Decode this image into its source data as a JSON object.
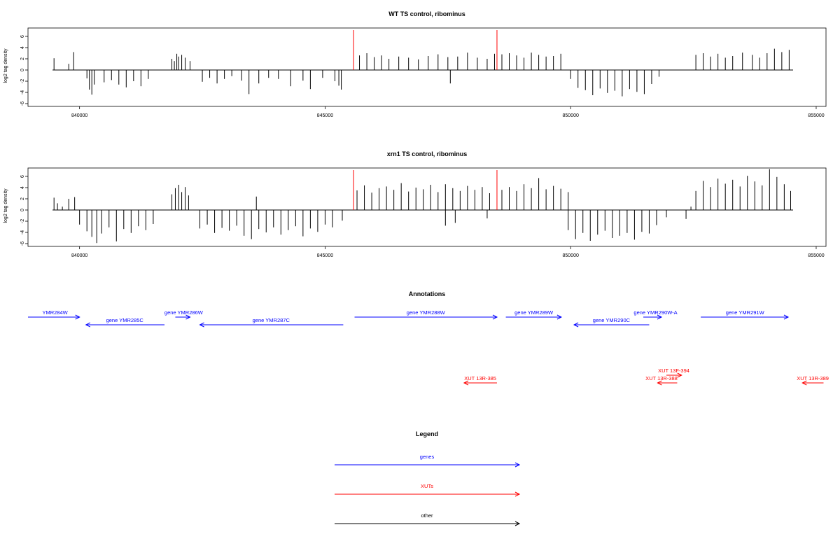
{
  "colors": {
    "gene": "#0000ff",
    "xut": "#ff0000",
    "other": "#000000",
    "marker": "#ff0000",
    "signal": "#000000"
  },
  "chart_data": [
    {
      "type": "bar",
      "title": "WT TS control, ribominus",
      "ylabel": "log2 tag density",
      "xlim": [
        838950,
        855200
      ],
      "ylim": [
        -6,
        7.5
      ],
      "xticks": [
        840000,
        845000,
        850000,
        855000
      ],
      "xtick_labels": [
        "840000",
        "845000",
        "850000",
        "855000"
      ],
      "yticks": [
        -6,
        -4,
        -2,
        0,
        2,
        4,
        6
      ],
      "ytick_labels": [
        "-6",
        "-4",
        "-2",
        "0",
        "2",
        "4",
        "6"
      ],
      "baseline_span": [
        839450,
        854530
      ],
      "markers": [
        845580,
        848500
      ],
      "series": [
        {
          "x": [
            839480,
            839880
          ],
          "values": [
            2.1,
            3.2
          ]
        },
        {
          "x": [
            839780
          ],
          "values": [
            1.1
          ]
        },
        {
          "x": [
            840150,
            840200,
            840250,
            840300,
            840500,
            840650
          ],
          "values": [
            -1.5,
            -3.5,
            -4.4,
            -2.6,
            -2.2,
            -1.8
          ]
        },
        {
          "x": [
            840800,
            840950,
            841100,
            841250,
            841400
          ],
          "values": [
            -2.6,
            -3.1,
            -2.0,
            -2.9,
            -1.6
          ]
        },
        {
          "x": [
            841880,
            841930,
            841980,
            842020,
            842080,
            842150,
            842250
          ],
          "values": [
            2.0,
            1.6,
            2.9,
            2.4,
            2.7,
            2.2,
            1.6
          ]
        },
        {
          "x": [
            842500,
            842650,
            842800,
            842950,
            843100,
            843300,
            843450,
            843650,
            843850
          ],
          "values": [
            -2.1,
            -1.4,
            -2.4,
            -1.6,
            -1.1,
            -1.9,
            -4.3,
            -2.4,
            -1.4
          ]
        },
        {
          "x": [
            844050,
            844300,
            844550,
            844700,
            844950
          ],
          "values": [
            -1.6,
            -2.9,
            -1.9,
            -3.4,
            -1.4
          ]
        },
        {
          "x": [
            845200,
            845280,
            845330
          ],
          "values": [
            -2.0,
            -2.8,
            -3.5
          ]
        },
        {
          "x": [
            845700,
            845850,
            846000,
            846150,
            846300,
            846500,
            846700,
            846900,
            847100,
            847300,
            847500,
            847700,
            847900,
            848100,
            848300,
            848450
          ],
          "values": [
            2.6,
            3.0,
            2.3,
            2.6,
            2.0,
            2.4,
            2.2,
            1.9,
            2.5,
            2.8,
            2.3,
            2.4,
            3.1,
            2.2,
            2.0,
            2.9
          ]
        },
        {
          "x": [
            847550
          ],
          "values": [
            -2.4
          ]
        },
        {
          "x": [
            848600,
            848750,
            848900,
            849050,
            849200,
            849350,
            849500,
            849650,
            849800
          ],
          "values": [
            2.8,
            3.0,
            2.6,
            2.2,
            3.1,
            2.7,
            2.4,
            2.5,
            2.9
          ]
        },
        {
          "x": [
            850000,
            850150,
            850300,
            850450,
            850600,
            850750,
            850900,
            851050,
            851200,
            851350,
            851500,
            851650,
            851800
          ],
          "values": [
            -1.6,
            -3.2,
            -3.6,
            -4.5,
            -3.3,
            -4.1,
            -3.7,
            -4.7,
            -3.4,
            -3.9,
            -4.3,
            -2.5,
            -1.2
          ]
        },
        {
          "x": [
            852550,
            852700,
            852850,
            853000,
            853150,
            853300,
            853500,
            853700,
            853850,
            854000,
            854150,
            854300,
            854450
          ],
          "values": [
            2.7,
            3.0,
            2.4,
            2.9,
            2.2,
            2.5,
            3.1,
            2.7,
            2.2,
            3.0,
            3.8,
            3.2,
            3.6
          ]
        }
      ]
    },
    {
      "type": "bar",
      "title": "xrn1 TS control, ribominus",
      "ylabel": "log2 tag density",
      "xlim": [
        838950,
        855200
      ],
      "ylim": [
        -6,
        7.5
      ],
      "xticks": [
        840000,
        845000,
        850000,
        855000
      ],
      "xtick_labels": [
        "840000",
        "845000",
        "850000",
        "855000"
      ],
      "yticks": [
        -6,
        -4,
        -2,
        0,
        2,
        4,
        6
      ],
      "ytick_labels": [
        "-6",
        "-4",
        "-2",
        "0",
        "2",
        "4",
        "6"
      ],
      "baseline_span": [
        839450,
        854530
      ],
      "markers": [
        845580,
        848500
      ],
      "series": [
        {
          "x": [
            839480,
            839550,
            839650,
            839780,
            839900
          ],
          "values": [
            2.2,
            1.2,
            0.6,
            2.0,
            2.3
          ]
        },
        {
          "x": [
            840000,
            840150,
            840250,
            840350,
            840450,
            840600,
            840750,
            840900,
            841050,
            841200,
            841350,
            841500
          ],
          "values": [
            -2.6,
            -3.8,
            -4.8,
            -5.9,
            -4.2,
            -3.1,
            -5.6,
            -3.4,
            -4.1,
            -2.9,
            -3.6,
            -2.5
          ]
        },
        {
          "x": [
            841880,
            841950,
            842020,
            842080,
            842150,
            842220
          ],
          "values": [
            2.8,
            3.9,
            4.5,
            3.2,
            4.1,
            2.6
          ]
        },
        {
          "x": [
            842450,
            842600,
            842750,
            842900,
            843050,
            843200,
            843350,
            843500,
            843650,
            843800,
            843950,
            844100,
            844250,
            844400,
            844550,
            844700,
            844850,
            845000,
            845150,
            845350
          ],
          "values": [
            -3.3,
            -2.6,
            -4.1,
            -3.2,
            -3.7,
            -2.8,
            -4.6,
            -5.2,
            -3.4,
            -4.0,
            -3.1,
            -4.4,
            -3.6,
            -2.9,
            -4.7,
            -3.3,
            -3.9,
            -2.6,
            -3.1,
            -1.9
          ]
        },
        {
          "x": [
            843600
          ],
          "values": [
            2.4
          ]
        },
        {
          "x": [
            845650,
            845800,
            845950,
            846100,
            846250,
            846400,
            846550,
            846700,
            846850,
            847000,
            847150,
            847300,
            847450,
            847600,
            847750,
            847900,
            848050,
            848200,
            848350
          ],
          "values": [
            3.5,
            4.4,
            3.1,
            3.9,
            4.2,
            3.6,
            4.8,
            3.3,
            4.0,
            3.7,
            4.5,
            3.2,
            4.6,
            3.9,
            3.4,
            4.3,
            3.6,
            4.1,
            3.0
          ]
        },
        {
          "x": [
            847450,
            847650,
            848300
          ],
          "values": [
            -2.8,
            -2.3,
            -1.5
          ]
        },
        {
          "x": [
            848600,
            848750,
            848900,
            849050,
            849200,
            849350,
            849500,
            849650,
            849800,
            849950
          ],
          "values": [
            3.6,
            4.1,
            3.4,
            4.6,
            3.9,
            5.7,
            3.7,
            4.3,
            3.8,
            3.2
          ]
        },
        {
          "x": [
            849950,
            850100,
            850250,
            850400,
            850550,
            850700,
            850850,
            851000,
            851150,
            851300,
            851450,
            851600,
            851750,
            851950
          ],
          "values": [
            -3.6,
            -5.2,
            -4.1,
            -5.5,
            -4.4,
            -3.7,
            -5.0,
            -4.6,
            -4.1,
            -5.3,
            -3.9,
            -4.2,
            -2.7,
            -1.3
          ]
        },
        {
          "x": [
            852350,
            852450
          ],
          "values": [
            -1.6,
            0.6
          ]
        },
        {
          "x": [
            852550,
            852700,
            852850,
            853000,
            853150,
            853300,
            853450,
            853600,
            853750,
            853900,
            854050,
            854200,
            854350,
            854480
          ],
          "values": [
            3.4,
            5.2,
            4.1,
            5.6,
            4.7,
            5.4,
            4.2,
            6.1,
            5.1,
            4.4,
            7.3,
            5.9,
            4.6,
            3.4
          ]
        }
      ]
    }
  ],
  "annotations": {
    "title": "Annotations",
    "genes": [
      {
        "label": "YMR284W",
        "dir": "right",
        "x1": 838950,
        "x2": 840000,
        "row": 0,
        "label_x": 839500
      },
      {
        "label": "gene YMR285C",
        "dir": "left",
        "x1": 840130,
        "x2": 841730,
        "row": 1,
        "label_x": 840920
      },
      {
        "label": "gene YMR286W",
        "dir": "right",
        "x1": 841950,
        "x2": 842250,
        "row": 0,
        "label_x": 842120
      },
      {
        "label": "gene YMR287C",
        "dir": "left",
        "x1": 842450,
        "x2": 845370,
        "row": 1,
        "label_x": 843900
      },
      {
        "label": "gene YMR288W",
        "dir": "right",
        "x1": 845600,
        "x2": 848500,
        "row": 0,
        "label_x": 847050
      },
      {
        "label": "gene YMR289W",
        "dir": "right",
        "x1": 848680,
        "x2": 849810,
        "row": 0,
        "label_x": 849250
      },
      {
        "label": "gene YMR290C",
        "dir": "left",
        "x1": 850070,
        "x2": 851600,
        "row": 1,
        "label_x": 850830
      },
      {
        "label": "gene YMR290W-A",
        "dir": "right",
        "x1": 851480,
        "x2": 851850,
        "row": 0,
        "label_x": 851730
      },
      {
        "label": "gene YMR291W",
        "dir": "right",
        "x1": 852650,
        "x2": 854430,
        "row": 0,
        "label_x": 853550
      }
    ],
    "xuts": [
      {
        "label": "XUT 13R-385",
        "dir": "left",
        "x1": 847830,
        "x2": 848500,
        "row": 1,
        "label_x": 848160
      },
      {
        "label": "XUT 13F-394",
        "dir": "right",
        "x1": 851950,
        "x2": 852260,
        "row": 0,
        "label_x": 852100
      },
      {
        "label": "XUT 13R-388",
        "dir": "left",
        "x1": 851770,
        "x2": 852170,
        "row": 1,
        "label_x": 851850
      },
      {
        "label": "XUT 13R-389",
        "dir": "left",
        "x1": 854720,
        "x2": 855150,
        "row": 1,
        "label_x": 854930
      }
    ]
  },
  "legend": {
    "title": "Legend",
    "items": [
      {
        "label": "genes",
        "kind": "gene"
      },
      {
        "label": "XUTs",
        "kind": "xut"
      },
      {
        "label": "other",
        "kind": "other"
      }
    ]
  }
}
